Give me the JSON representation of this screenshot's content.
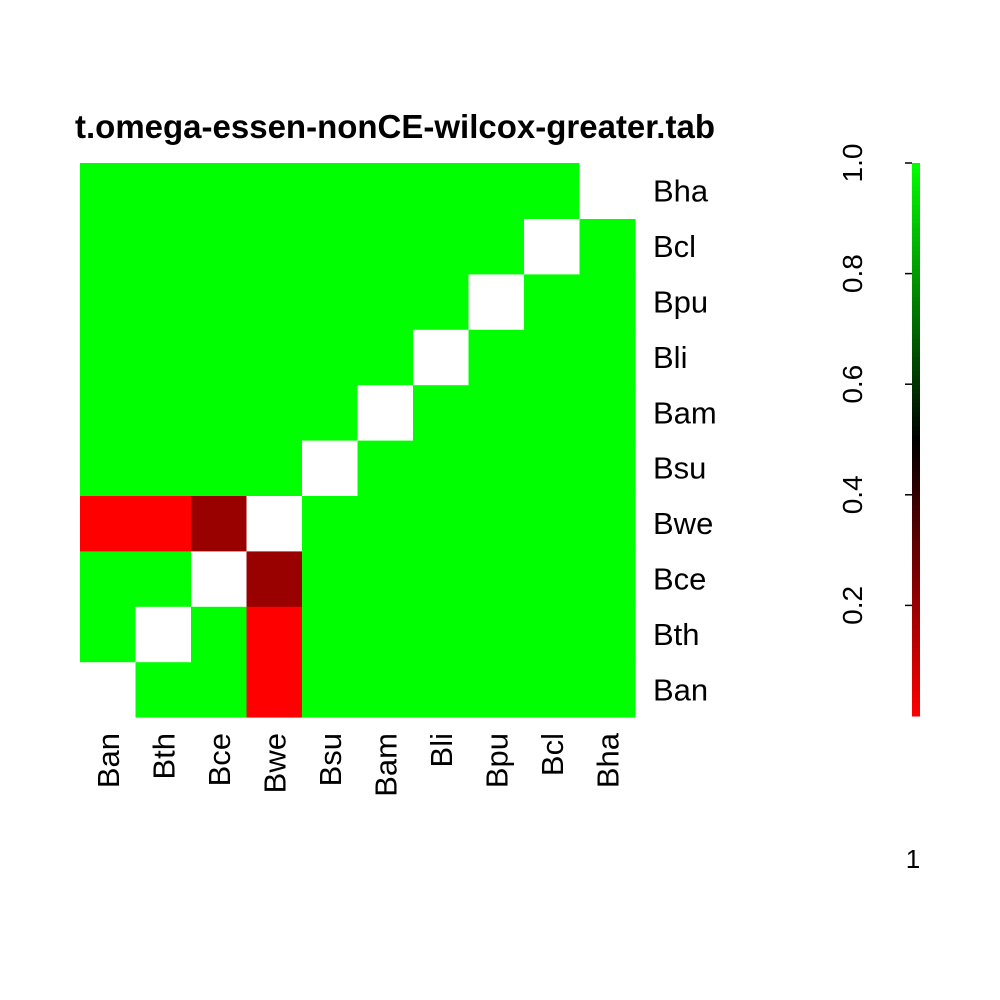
{
  "chart_data": {
    "type": "heatmap",
    "title": "t.omega-essen-nonCE-wilcox-greater.tab",
    "xlabel": "",
    "ylabel": "",
    "x_labels": [
      "Ban",
      "Bth",
      "Bce",
      "Bwe",
      "Bsu",
      "Bam",
      "Bli",
      "Bpu",
      "Bcl",
      "Bha"
    ],
    "y_labels": [
      "Ban",
      "Bth",
      "Bce",
      "Bwe",
      "Bsu",
      "Bam",
      "Bli",
      "Bpu",
      "Bcl",
      "Bha"
    ],
    "values": [
      [
        null,
        1.0,
        1.0,
        0.0,
        1.0,
        1.0,
        1.0,
        1.0,
        1.0,
        1.0
      ],
      [
        1.0,
        null,
        1.0,
        0.0,
        1.0,
        1.0,
        1.0,
        1.0,
        1.0,
        1.0
      ],
      [
        1.0,
        1.0,
        null,
        0.2,
        1.0,
        1.0,
        1.0,
        1.0,
        1.0,
        1.0
      ],
      [
        0.0,
        0.0,
        0.2,
        null,
        1.0,
        1.0,
        1.0,
        1.0,
        1.0,
        1.0
      ],
      [
        1.0,
        1.0,
        1.0,
        1.0,
        null,
        1.0,
        1.0,
        1.0,
        1.0,
        1.0
      ],
      [
        1.0,
        1.0,
        1.0,
        1.0,
        1.0,
        null,
        1.0,
        1.0,
        1.0,
        1.0
      ],
      [
        1.0,
        1.0,
        1.0,
        1.0,
        1.0,
        1.0,
        null,
        1.0,
        1.0,
        1.0
      ],
      [
        1.0,
        1.0,
        1.0,
        1.0,
        1.0,
        1.0,
        1.0,
        null,
        1.0,
        1.0
      ],
      [
        1.0,
        1.0,
        1.0,
        1.0,
        1.0,
        1.0,
        1.0,
        1.0,
        null,
        1.0
      ],
      [
        1.0,
        1.0,
        1.0,
        1.0,
        1.0,
        1.0,
        1.0,
        1.0,
        1.0,
        null
      ]
    ],
    "row_order": "bottom-to-top",
    "colorscale": {
      "low": "#ff0000",
      "mid": "#000000",
      "high": "#00ff00",
      "range": [
        0.0,
        1.0
      ],
      "ticks": [
        "0.2",
        "0.4",
        "0.6",
        "0.8",
        "1.0"
      ],
      "tick_values": [
        0.2,
        0.4,
        0.6,
        0.8,
        1.0
      ]
    },
    "missing_color": "#ffffff",
    "footer": "1"
  }
}
